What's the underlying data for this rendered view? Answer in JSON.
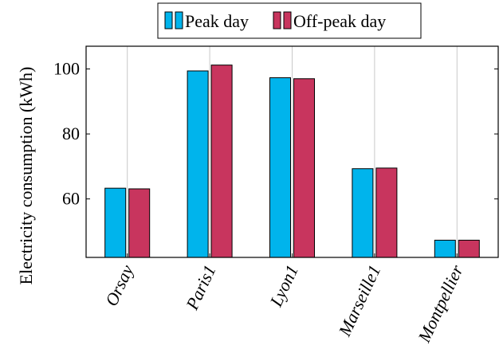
{
  "chart_data": {
    "type": "bar",
    "categories": [
      "Orsay",
      "Paris1",
      "Lyon1",
      "Marseille1",
      "Montpellier"
    ],
    "series": [
      {
        "name": "Peak day",
        "values": [
          63.3,
          99.4,
          97.3,
          69.3,
          47.3
        ],
        "color": "#00b4ec"
      },
      {
        "name": "Off-peak day",
        "values": [
          63.1,
          101.2,
          97.0,
          69.5,
          47.3
        ],
        "color": "#c8355e"
      }
    ],
    "ylabel": "Electricity consumption (kWh)",
    "xlabel": "",
    "ylim": [
      42,
      107
    ],
    "yticks": [
      60,
      80,
      100
    ],
    "grid": "vertical",
    "legend_position": "top"
  }
}
